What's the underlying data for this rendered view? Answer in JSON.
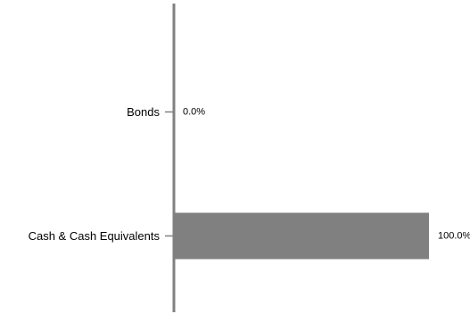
{
  "chart_data": {
    "type": "bar",
    "orientation": "horizontal",
    "categories": [
      "Bonds",
      "Cash & Cash Equivalents"
    ],
    "values": [
      0.0,
      100.0
    ],
    "data_labels": [
      "0.0%",
      "100.0%"
    ],
    "xlim": [
      0,
      100
    ],
    "title": "",
    "xlabel": "",
    "ylabel": "",
    "grid": false,
    "legend": "none",
    "colors": {
      "bar": "#808080",
      "axis": "#808080",
      "text": "#000000"
    }
  }
}
